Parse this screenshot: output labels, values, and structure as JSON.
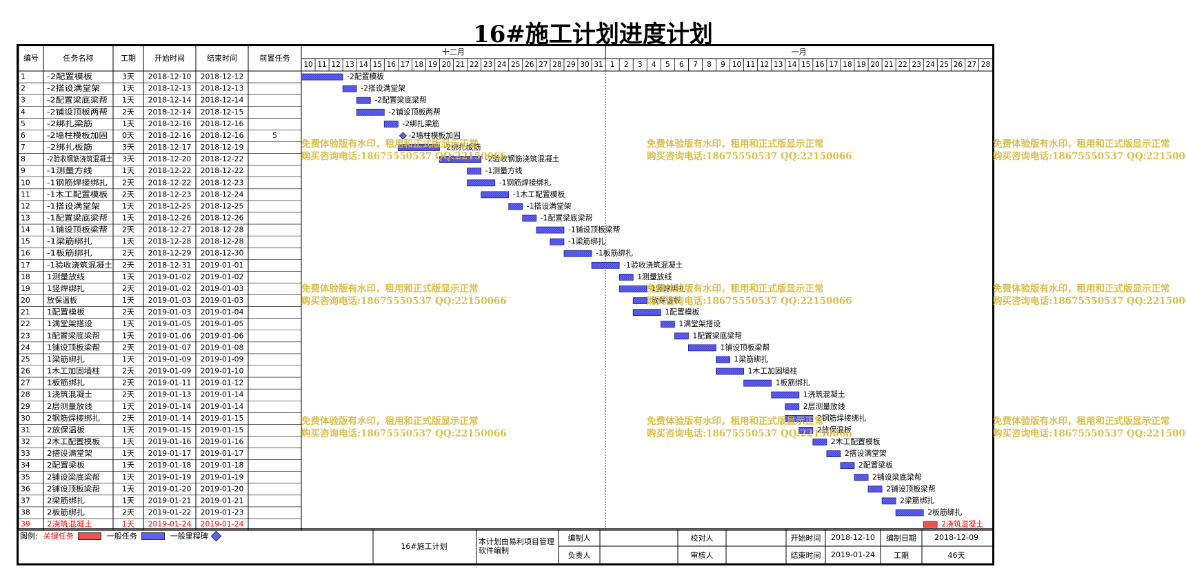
{
  "title": "16#施工计划进度计划",
  "columns": {
    "id": "编号",
    "name": "任务名称",
    "duration": "工期",
    "start": "开始时间",
    "end": "结束时间",
    "pred": "前置任务"
  },
  "timeline": {
    "months": [
      "十二月",
      "一月"
    ],
    "day_labels": [
      "10",
      "11",
      "12",
      "13",
      "14",
      "15",
      "16",
      "17",
      "18",
      "19",
      "20",
      "21",
      "22",
      "23",
      "24",
      "25",
      "26",
      "27",
      "28",
      "29",
      "30",
      "31",
      "1",
      "2",
      "3",
      "4",
      "5",
      "6",
      "7",
      "8",
      "9",
      "10",
      "11",
      "12",
      "13",
      "14",
      "15",
      "16",
      "17",
      "18",
      "19",
      "20",
      "21",
      "22",
      "23",
      "24",
      "25",
      "26",
      "27",
      "28"
    ],
    "first_day": "2018-12-10",
    "last_day": "2019-01-28"
  },
  "chart_data": {
    "type": "bar",
    "title": "16#施工计划进度计划",
    "x_axis": "dates 2018-12-10 to 2019-01-28",
    "tasks": [
      {
        "id": "1",
        "name": "-2配置模板",
        "duration": "3天",
        "start": "2018-12-10",
        "end": "2018-12-12",
        "pred": "",
        "type": "normal"
      },
      {
        "id": "2",
        "name": "-2搭设满堂架",
        "duration": "1天",
        "start": "2018-12-13",
        "end": "2018-12-13",
        "pred": "",
        "type": "normal"
      },
      {
        "id": "3",
        "name": "-2配置梁底梁帮",
        "duration": "1天",
        "start": "2018-12-14",
        "end": "2018-12-14",
        "pred": "",
        "type": "normal"
      },
      {
        "id": "4",
        "name": "-2铺设顶板两帮",
        "duration": "2天",
        "start": "2018-12-14",
        "end": "2018-12-15",
        "pred": "",
        "type": "normal"
      },
      {
        "id": "5",
        "name": "-2绑扎梁筋",
        "duration": "1天",
        "start": "2018-12-16",
        "end": "2018-12-16",
        "pred": "",
        "type": "normal"
      },
      {
        "id": "6",
        "name": "-2墙柱模板加固",
        "duration": "0天",
        "start": "2018-12-16",
        "end": "2018-12-16",
        "pred": "5",
        "type": "milestone"
      },
      {
        "id": "7",
        "name": "-2绑扎板筋",
        "duration": "3天",
        "start": "2018-12-17",
        "end": "2018-12-19",
        "pred": "",
        "type": "normal"
      },
      {
        "id": "8",
        "name": "-2验收钢筋浇筑混凝土",
        "duration": "3天",
        "start": "2018-12-20",
        "end": "2018-12-22",
        "pred": "",
        "type": "normal"
      },
      {
        "id": "9",
        "name": "-1测量方线",
        "duration": "1天",
        "start": "2018-12-22",
        "end": "2018-12-22",
        "pred": "",
        "type": "normal"
      },
      {
        "id": "10",
        "name": "-1钢筋焊接绑扎",
        "duration": "2天",
        "start": "2018-12-22",
        "end": "2018-12-23",
        "pred": "",
        "type": "normal"
      },
      {
        "id": "11",
        "name": "-1木工配置模板",
        "duration": "2天",
        "start": "2018-12-23",
        "end": "2018-12-24",
        "pred": "",
        "type": "normal"
      },
      {
        "id": "12",
        "name": "-1搭设满堂架",
        "duration": "1天",
        "start": "2018-12-25",
        "end": "2018-12-25",
        "pred": "",
        "type": "normal"
      },
      {
        "id": "13",
        "name": "-1配置梁底梁帮",
        "duration": "1天",
        "start": "2018-12-26",
        "end": "2018-12-26",
        "pred": "",
        "type": "normal"
      },
      {
        "id": "14",
        "name": "-1铺设顶板梁帮",
        "duration": "2天",
        "start": "2018-12-27",
        "end": "2018-12-28",
        "pred": "",
        "type": "normal"
      },
      {
        "id": "15",
        "name": "-1梁筋绑扎",
        "duration": "1天",
        "start": "2018-12-28",
        "end": "2018-12-28",
        "pred": "",
        "type": "normal"
      },
      {
        "id": "16",
        "name": "-1板筋绑扎",
        "duration": "2天",
        "start": "2018-12-29",
        "end": "2018-12-30",
        "pred": "",
        "type": "normal"
      },
      {
        "id": "17",
        "name": "-1验收浇筑混凝土",
        "duration": "2天",
        "start": "2018-12-31",
        "end": "2019-01-01",
        "pred": "",
        "type": "normal"
      },
      {
        "id": "18",
        "name": "1测量放线",
        "duration": "1天",
        "start": "2019-01-02",
        "end": "2019-01-02",
        "pred": "",
        "type": "normal"
      },
      {
        "id": "19",
        "name": "1竖焊绑扎",
        "duration": "2天",
        "start": "2019-01-02",
        "end": "2019-01-03",
        "pred": "",
        "type": "normal"
      },
      {
        "id": "20",
        "name": "放保温板",
        "duration": "1天",
        "start": "2019-01-03",
        "end": "2019-01-03",
        "pred": "",
        "type": "normal"
      },
      {
        "id": "21",
        "name": "1配置模板",
        "duration": "2天",
        "start": "2019-01-03",
        "end": "2019-01-04",
        "pred": "",
        "type": "normal"
      },
      {
        "id": "22",
        "name": "1满堂架搭设",
        "duration": "1天",
        "start": "2019-01-05",
        "end": "2019-01-05",
        "pred": "",
        "type": "normal"
      },
      {
        "id": "23",
        "name": "1配置梁底梁帮",
        "duration": "1天",
        "start": "2019-01-06",
        "end": "2019-01-06",
        "pred": "",
        "type": "normal"
      },
      {
        "id": "24",
        "name": "1铺设顶板梁帮",
        "duration": "2天",
        "start": "2019-01-07",
        "end": "2019-01-08",
        "pred": "",
        "type": "normal"
      },
      {
        "id": "25",
        "name": "1梁筋绑扎",
        "duration": "1天",
        "start": "2019-01-09",
        "end": "2019-01-09",
        "pred": "",
        "type": "normal"
      },
      {
        "id": "26",
        "name": "1木工加固墙柱",
        "duration": "2天",
        "start": "2019-01-09",
        "end": "2019-01-10",
        "pred": "",
        "type": "normal"
      },
      {
        "id": "27",
        "name": "1板筋绑扎",
        "duration": "2天",
        "start": "2019-01-11",
        "end": "2019-01-12",
        "pred": "",
        "type": "normal"
      },
      {
        "id": "28",
        "name": "1浇筑混凝土",
        "duration": "2天",
        "start": "2019-01-13",
        "end": "2019-01-14",
        "pred": "",
        "type": "normal"
      },
      {
        "id": "29",
        "name": "2层测量放线",
        "duration": "1天",
        "start": "2019-01-14",
        "end": "2019-01-14",
        "pred": "",
        "type": "normal"
      },
      {
        "id": "30",
        "name": "2钢筋焊接绑扎",
        "duration": "2天",
        "start": "2019-01-14",
        "end": "2019-01-15",
        "pred": "",
        "type": "normal"
      },
      {
        "id": "31",
        "name": "2放保温板",
        "duration": "1天",
        "start": "2019-01-15",
        "end": "2019-01-15",
        "pred": "",
        "type": "normal"
      },
      {
        "id": "32",
        "name": "2木工配置模板",
        "duration": "1天",
        "start": "2019-01-16",
        "end": "2019-01-16",
        "pred": "",
        "type": "normal"
      },
      {
        "id": "33",
        "name": "2搭设满堂架",
        "duration": "1天",
        "start": "2019-01-17",
        "end": "2019-01-17",
        "pred": "",
        "type": "normal"
      },
      {
        "id": "34",
        "name": "2配置梁板",
        "duration": "1天",
        "start": "2019-01-18",
        "end": "2019-01-18",
        "pred": "",
        "type": "normal"
      },
      {
        "id": "35",
        "name": "2铺设梁底梁帮",
        "duration": "1天",
        "start": "2019-01-19",
        "end": "2019-01-19",
        "pred": "",
        "type": "normal"
      },
      {
        "id": "36",
        "name": "2铺设顶板梁帮",
        "duration": "1天",
        "start": "2019-01-20",
        "end": "2019-01-20",
        "pred": "",
        "type": "normal"
      },
      {
        "id": "37",
        "name": "2梁筋绑扎",
        "duration": "1天",
        "start": "2019-01-21",
        "end": "2019-01-21",
        "pred": "",
        "type": "normal"
      },
      {
        "id": "38",
        "name": "2板筋绑扎",
        "duration": "2天",
        "start": "2019-01-22",
        "end": "2019-01-23",
        "pred": "",
        "type": "normal"
      },
      {
        "id": "39",
        "name": "2浇筑混凝土",
        "duration": "1天",
        "start": "2019-01-24",
        "end": "2019-01-24",
        "pred": "",
        "type": "critical"
      }
    ]
  },
  "colors": {
    "normal_bar": "#6060f0",
    "critical_bar": "#f05050",
    "critical_text": "#ff0000",
    "watermark": "#d9b93c"
  },
  "watermark": {
    "line1": "免费体验版有水印，租用和正式版显示正常",
    "line2": "购买咨询电话:18675550537 QQ:22150066"
  },
  "legend": {
    "label": "图例:",
    "critical": "关键任务",
    "normal": "一般任务",
    "milestone": "一般里程碑"
  },
  "footer": {
    "plan_name": "16#施工计划",
    "software_note": "本计划由易利项目管理软件编制",
    "compiler_label": "编制人",
    "checker_label": "校对人",
    "owner_label": "负责人",
    "reviewer_label": "审核人",
    "start_label": "开始时间",
    "start_value": "2018-12-10",
    "compile_date_label": "编制日期",
    "compile_date_value": "2018-12-09",
    "end_label": "结束时间",
    "end_value": "2019-01-24",
    "duration_label": "工期",
    "duration_value": "46天"
  }
}
